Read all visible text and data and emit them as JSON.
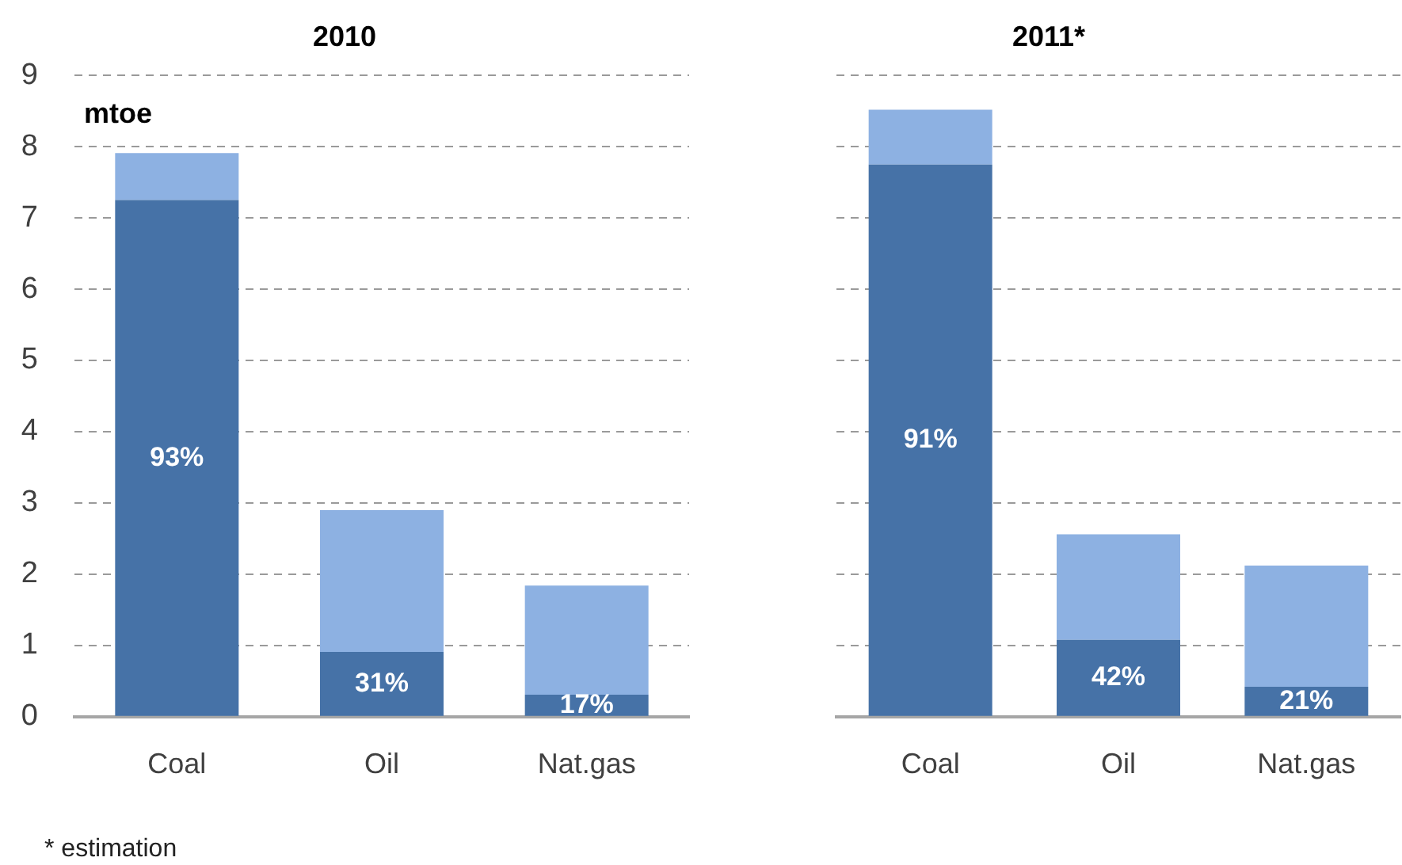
{
  "chart_data": [
    {
      "type": "bar",
      "title": "2010",
      "ylabel": "mtoe",
      "categories": [
        "Coal",
        "Oil",
        "Nat.gas"
      ],
      "stacked": true,
      "series": [
        {
          "color": "#4672a7",
          "values": [
            7.25,
            0.91,
            0.31
          ]
        },
        {
          "color": "#8db1e2",
          "values": [
            0.66,
            1.99,
            1.53
          ]
        }
      ],
      "ylim": [
        0,
        9
      ],
      "yticks": [
        0,
        1,
        2,
        3,
        4,
        5,
        6,
        7,
        8,
        9
      ],
      "grid": "y",
      "annotations": [
        "93%",
        "31%",
        "17%",
        "* estimation"
      ]
    },
    {
      "type": "bar",
      "title": "2011*",
      "categories": [
        "Coal",
        "Oil",
        "Nat.gas"
      ],
      "stacked": true,
      "series": [
        {
          "color": "#4672a7",
          "values": [
            7.75,
            1.08,
            0.42
          ]
        },
        {
          "color": "#8db1e2",
          "values": [
            0.77,
            1.48,
            1.7
          ]
        }
      ],
      "ylim": [
        0,
        9
      ],
      "yticks": [
        0,
        1,
        2,
        3,
        4,
        5,
        6,
        7,
        8,
        9
      ],
      "grid": "y",
      "tick_labels": "x",
      "annotations": [
        "91%",
        "42%",
        "21%"
      ]
    }
  ]
}
